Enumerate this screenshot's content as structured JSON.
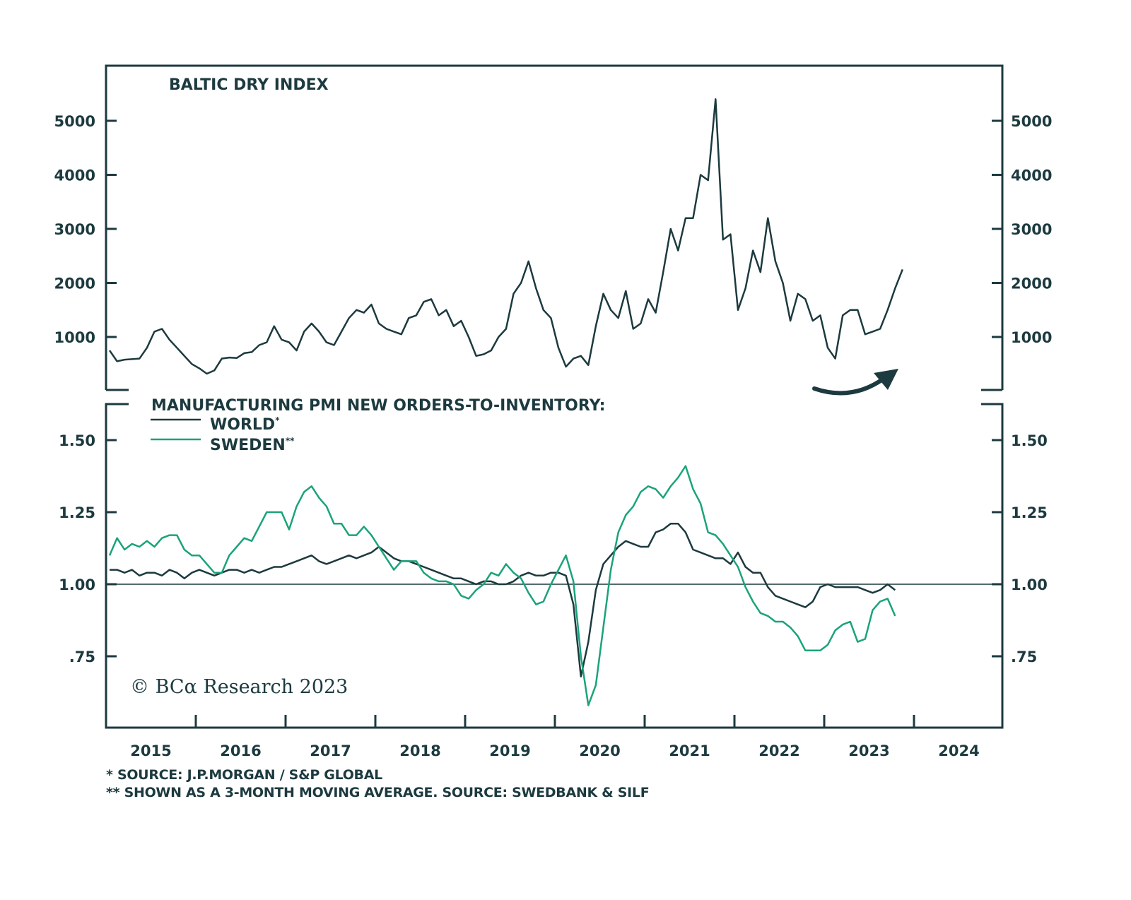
{
  "colors": {
    "world": "#1c3a3f",
    "sweden": "#1aa37a",
    "axis": "#1c3a3f"
  },
  "chart_data": [
    {
      "type": "line",
      "title": "BALTIC DRY INDEX",
      "ylim": [
        0,
        5800
      ],
      "yticks": [
        "1000",
        "2000",
        "3000",
        "4000",
        "5000"
      ],
      "xlim": [
        "2015-01",
        "2024-12"
      ],
      "grid": false,
      "x_start": "2015-01",
      "frequency": "monthly",
      "values": [
        750,
        550,
        580,
        590,
        600,
        800,
        1100,
        1150,
        950,
        800,
        650,
        500,
        420,
        320,
        380,
        600,
        620,
        610,
        700,
        720,
        850,
        900,
        1200,
        950,
        900,
        750,
        1100,
        1250,
        1100,
        900,
        850,
        1100,
        1350,
        1500,
        1450,
        1600,
        1250,
        1150,
        1100,
        1050,
        1350,
        1400,
        1650,
        1700,
        1400,
        1500,
        1200,
        1300,
        1000,
        650,
        680,
        750,
        1000,
        1150,
        1800,
        2000,
        2400,
        1900,
        1500,
        1350,
        800,
        450,
        600,
        650,
        480,
        1200,
        1800,
        1500,
        1350,
        1850,
        1150,
        1250,
        1700,
        1450,
        2200,
        3000,
        2600,
        3200,
        3200,
        4000,
        3900,
        5400,
        2800,
        2900,
        1500,
        1900,
        2600,
        2200,
        3200,
        2400,
        2000,
        1300,
        1800,
        1700,
        1300,
        1400,
        800,
        600,
        1400,
        1500,
        1500,
        1050,
        1100,
        1150,
        1500,
        1900,
        2250
      ],
      "annotation": "upward arrow"
    },
    {
      "type": "line",
      "title": "MANUFACTURING PMI NEW ORDERS-TO-INVENTORY:",
      "ylim": [
        0.55,
        1.62
      ],
      "yticks": [
        ".75",
        "1.00",
        "1.25",
        "1.50"
      ],
      "reference_line": 1.0,
      "xlim": [
        "2015-01",
        "2024-12"
      ],
      "x_start": "2015-01",
      "frequency": "monthly",
      "legend": "top-left",
      "series": [
        {
          "name": "WORLD",
          "marker": "*",
          "values": [
            1.05,
            1.05,
            1.04,
            1.05,
            1.03,
            1.04,
            1.04,
            1.03,
            1.05,
            1.04,
            1.02,
            1.04,
            1.05,
            1.04,
            1.03,
            1.04,
            1.05,
            1.05,
            1.04,
            1.05,
            1.04,
            1.05,
            1.06,
            1.06,
            1.07,
            1.08,
            1.09,
            1.1,
            1.08,
            1.07,
            1.08,
            1.09,
            1.1,
            1.09,
            1.1,
            1.11,
            1.13,
            1.11,
            1.09,
            1.08,
            1.08,
            1.07,
            1.06,
            1.05,
            1.04,
            1.03,
            1.02,
            1.02,
            1.01,
            1.0,
            1.01,
            1.01,
            1.0,
            1.0,
            1.01,
            1.03,
            1.04,
            1.03,
            1.03,
            1.04,
            1.04,
            1.03,
            0.93,
            0.68,
            0.8,
            0.98,
            1.07,
            1.1,
            1.13,
            1.15,
            1.14,
            1.13,
            1.13,
            1.18,
            1.19,
            1.21,
            1.21,
            1.18,
            1.12,
            1.11,
            1.1,
            1.09,
            1.09,
            1.07,
            1.11,
            1.06,
            1.04,
            1.04,
            0.99,
            0.96,
            0.95,
            0.94,
            0.93,
            0.92,
            0.94,
            0.99,
            1.0,
            0.99,
            0.99,
            0.99,
            0.99,
            0.98,
            0.97,
            0.98,
            1.0,
            0.98
          ]
        },
        {
          "name": "SWEDEN",
          "marker": "**",
          "values": [
            1.1,
            1.16,
            1.12,
            1.14,
            1.13,
            1.15,
            1.13,
            1.16,
            1.17,
            1.17,
            1.12,
            1.1,
            1.1,
            1.07,
            1.04,
            1.04,
            1.1,
            1.13,
            1.16,
            1.15,
            1.2,
            1.25,
            1.25,
            1.25,
            1.19,
            1.27,
            1.32,
            1.34,
            1.3,
            1.27,
            1.21,
            1.21,
            1.17,
            1.17,
            1.2,
            1.17,
            1.13,
            1.09,
            1.05,
            1.08,
            1.08,
            1.08,
            1.04,
            1.02,
            1.01,
            1.01,
            1.0,
            0.96,
            0.95,
            0.98,
            1.0,
            1.04,
            1.03,
            1.07,
            1.04,
            1.02,
            0.97,
            0.93,
            0.94,
            1.0,
            1.05,
            1.1,
            1.01,
            0.75,
            0.58,
            0.65,
            0.85,
            1.05,
            1.18,
            1.24,
            1.27,
            1.32,
            1.34,
            1.33,
            1.3,
            1.34,
            1.37,
            1.41,
            1.33,
            1.28,
            1.18,
            1.17,
            1.14,
            1.1,
            1.06,
            0.99,
            0.94,
            0.9,
            0.89,
            0.87,
            0.87,
            0.85,
            0.82,
            0.77,
            0.77,
            0.77,
            0.79,
            0.84,
            0.86,
            0.87,
            0.8,
            0.81,
            0.91,
            0.94,
            0.95,
            0.89
          ]
        }
      ]
    }
  ],
  "xaxis": {
    "labels": [
      "2015",
      "2016",
      "2017",
      "2018",
      "2019",
      "2020",
      "2021",
      "2022",
      "2023",
      "2024"
    ]
  },
  "legend": {
    "world": "WORLD",
    "world_mark": "*",
    "sweden": "SWEDEN",
    "sweden_mark": "**"
  },
  "copyright": "© BCα Research 2023",
  "footnotes": [
    "*  SOURCE: J.P.MORGAN / S&P GLOBAL",
    "** SHOWN AS A 3-MONTH MOVING AVERAGE. SOURCE: SWEDBANK & SILF"
  ]
}
